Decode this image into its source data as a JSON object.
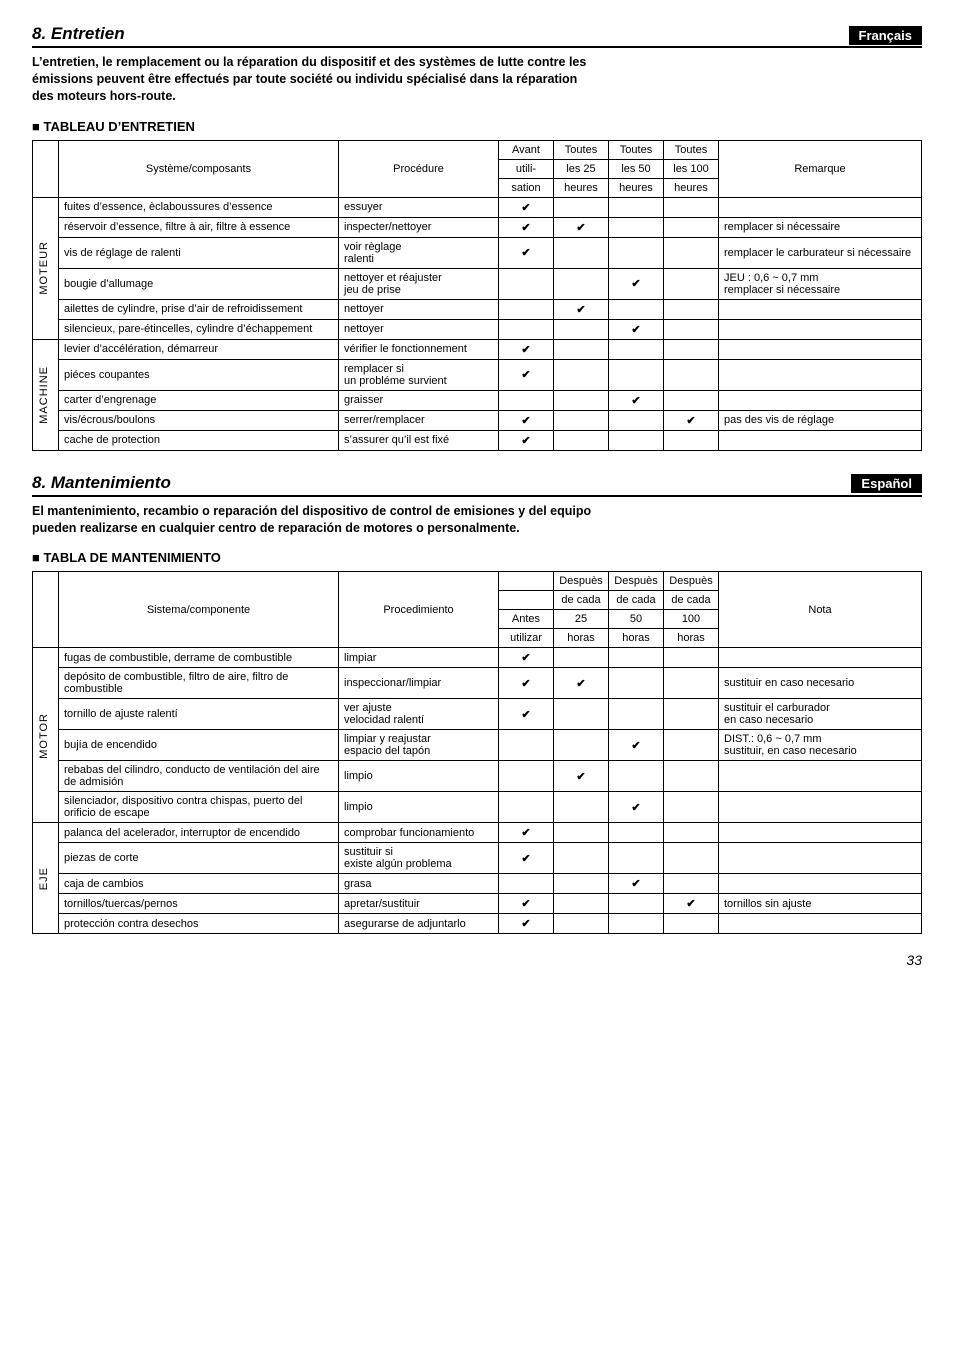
{
  "page_number": "33",
  "fr": {
    "title": "8. Entretien",
    "lang": "Français",
    "intro": "L’entretien, le remplacement ou la réparation du dispositif et des systèmes de lutte contre les émissions peuvent être effectués par toute société ou individu spécialisé dans la réparation des moteurs hors-route.",
    "subheading": "TABLEAU D’ENTRETIEN",
    "header": {
      "system": "Système/composants",
      "procedure": "Procédure",
      "col1a": "Avant",
      "col1b": "utili-",
      "col1c": "sation",
      "col2a": "Toutes",
      "col2b": "les 25",
      "col2c": "heures",
      "col3a": "Toutes",
      "col3b": "les 50",
      "col3c": "heures",
      "col4a": "Toutes",
      "col4b": "les 100",
      "col4c": "heures",
      "remark": "Remarque"
    },
    "group1": "MOTEUR",
    "group2": "MACHINE",
    "rows": [
      {
        "g": 1,
        "sys": "fuites d’essence, èclaboussures d’essence",
        "proc": "essuyer",
        "c": [
          1,
          0,
          0,
          0
        ],
        "rem": ""
      },
      {
        "g": 1,
        "sys": "réservoir d’essence, filtre à air, filtre à essence",
        "proc": "inspecter/nettoyer",
        "c": [
          1,
          1,
          0,
          0
        ],
        "rem": "remplacer si nécessaire"
      },
      {
        "g": 1,
        "sys": "vis de réglage de ralenti",
        "proc": "voir règlage\nralenti",
        "c": [
          1,
          0,
          0,
          0
        ],
        "rem": "remplacer le carburateur si nécessaire"
      },
      {
        "g": 1,
        "sys": "bougie d’allumage",
        "proc": "nettoyer et réajuster\njeu de prise",
        "c": [
          0,
          0,
          1,
          0
        ],
        "rem": "JEU : 0,6 ~ 0,7 mm\nremplacer si nécessaire"
      },
      {
        "g": 1,
        "sys": "ailettes de cylindre, prise d’air de refroidissement",
        "proc": "nettoyer",
        "c": [
          0,
          1,
          0,
          0
        ],
        "rem": ""
      },
      {
        "g": 1,
        "sys": "silencieux, pare-étincelles, cylindre d’échappement",
        "proc": "nettoyer",
        "c": [
          0,
          0,
          1,
          0
        ],
        "rem": ""
      },
      {
        "g": 2,
        "sys": "levier d’accélération, démarreur",
        "proc": "vérifier le fonctionnement",
        "c": [
          1,
          0,
          0,
          0
        ],
        "rem": ""
      },
      {
        "g": 2,
        "sys": "piéces coupantes",
        "proc": "remplacer si\nun probléme survient",
        "c": [
          1,
          0,
          0,
          0
        ],
        "rem": ""
      },
      {
        "g": 2,
        "sys": "carter d’engrenage",
        "proc": "graisser",
        "c": [
          0,
          0,
          1,
          0
        ],
        "rem": ""
      },
      {
        "g": 2,
        "sys": "vis/écrous/boulons",
        "proc": "serrer/remplacer",
        "c": [
          1,
          0,
          0,
          1
        ],
        "rem": "pas des vis de réglage"
      },
      {
        "g": 2,
        "sys": "cache de protection",
        "proc": "s’assurer qu’il est fixé",
        "c": [
          1,
          0,
          0,
          0
        ],
        "rem": ""
      }
    ]
  },
  "es": {
    "title": "8. Mantenimiento",
    "lang": "Español",
    "intro": "El mantenimiento, recambio o reparación del dispositivo de control de emisiones y del equipo pueden realizarse en cualquier centro de reparación de motores o personalmente.",
    "subheading": "TABLA DE MANTENIMIENTO",
    "header": {
      "system": "Sistema/componente",
      "procedure": "Procedimiento",
      "col1a": "",
      "col1b": "Antes",
      "col1c": "utilizar",
      "top": "Despuès",
      "mid": "de cada",
      "col2n": "25",
      "col3n": "50",
      "col4n": "100",
      "bot": "horas",
      "remark": "Nota"
    },
    "group1": "MOTOR",
    "group2": "EJE",
    "rows": [
      {
        "g": 1,
        "sys": "fugas de combustible, derrame de combustible",
        "proc": "limpiar",
        "c": [
          1,
          0,
          0,
          0
        ],
        "rem": ""
      },
      {
        "g": 1,
        "sys": "depósito de combustible, filtro de aire, filtro de combustible",
        "proc": "inspeccionar/limpiar",
        "c": [
          1,
          1,
          0,
          0
        ],
        "rem": "sustituir en caso necesario"
      },
      {
        "g": 1,
        "sys": "tornillo de ajuste ralentí",
        "proc": "ver ajuste\nvelocidad ralentí",
        "c": [
          1,
          0,
          0,
          0
        ],
        "rem": "sustituir el carburador\nen caso necesario"
      },
      {
        "g": 1,
        "sys": "bujía de encendido",
        "proc": "limpiar y reajustar\nespacio del tapón",
        "c": [
          0,
          0,
          1,
          0
        ],
        "rem": "DIST.: 0,6 ~ 0,7 mm\nsustituir, en caso necesario"
      },
      {
        "g": 1,
        "sys": "rebabas del cilindro, conducto de ventilación del aire de admisión",
        "proc": "limpio",
        "c": [
          0,
          1,
          0,
          0
        ],
        "rem": ""
      },
      {
        "g": 1,
        "sys": "silenciador, dispositivo contra chispas, puerto del orificio de escape",
        "proc": "limpio",
        "c": [
          0,
          0,
          1,
          0
        ],
        "rem": ""
      },
      {
        "g": 2,
        "sys": "palanca del acelerador, interruptor de encendido",
        "proc": "comprobar funcionamiento",
        "c": [
          1,
          0,
          0,
          0
        ],
        "rem": ""
      },
      {
        "g": 2,
        "sys": "piezas de corte",
        "proc": "sustituir si\nexiste algún problema",
        "c": [
          1,
          0,
          0,
          0
        ],
        "rem": ""
      },
      {
        "g": 2,
        "sys": "caja de cambios",
        "proc": "grasa",
        "c": [
          0,
          0,
          1,
          0
        ],
        "rem": ""
      },
      {
        "g": 2,
        "sys": "tornillos/tuercas/pernos",
        "proc": "apretar/sustituir",
        "c": [
          1,
          0,
          0,
          1
        ],
        "rem": "tornillos sin ajuste"
      },
      {
        "g": 2,
        "sys": "protección contra desechos",
        "proc": "asegurarse de adjuntarlo",
        "c": [
          1,
          0,
          0,
          0
        ],
        "rem": ""
      }
    ]
  }
}
